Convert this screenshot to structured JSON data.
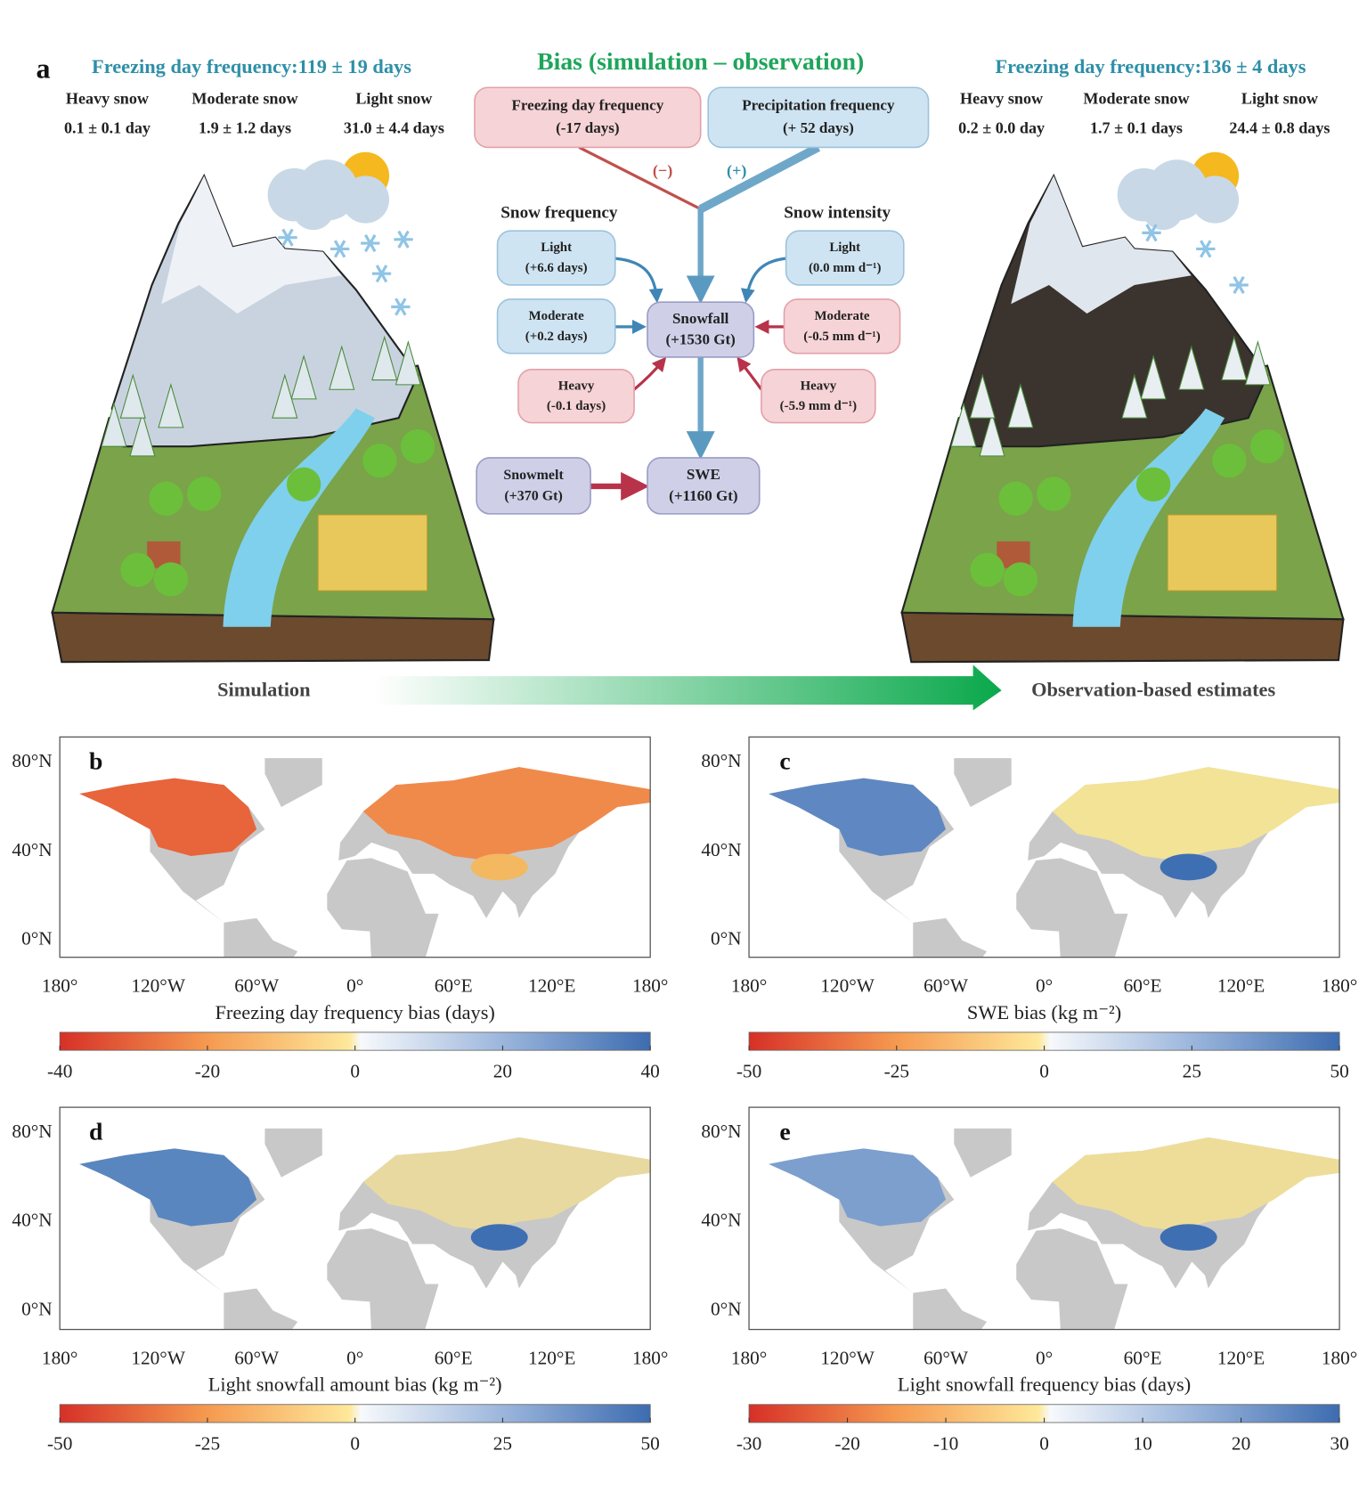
{
  "panel_a": {
    "label": "a",
    "title": "Bias (simulation – observation)",
    "simulation": {
      "title": "Freezing day frequency:119 ± 19 days",
      "items": [
        {
          "name": "Heavy snow",
          "value": "0.1 ± 0.1 day"
        },
        {
          "name": "Moderate snow",
          "value": "1.9 ± 1.2 days"
        },
        {
          "name": "Light snow",
          "value": "31.0 ± 4.4 days"
        }
      ],
      "caption": "Simulation"
    },
    "observation": {
      "title": "Freezing day frequency:136 ± 4 days",
      "items": [
        {
          "name": "Heavy snow",
          "value": "0.2 ± 0.0 day"
        },
        {
          "name": "Moderate snow",
          "value": "1.7 ± 0.1 days"
        },
        {
          "name": "Light snow",
          "value": "24.4 ± 0.8 days"
        }
      ],
      "caption": "Observation-based estimates"
    },
    "group_labels": [
      "Snow frequency",
      "Snow intensity"
    ],
    "edge_labels": [
      "(−)",
      "(+)"
    ],
    "nodes": [
      {
        "label": "Freezing day frequency",
        "detail": "(-17 days)"
      },
      {
        "label": "Precipitation frequency",
        "detail": "(+ 52 days)"
      },
      {
        "label": "Light",
        "detail": "(+6.6 days)"
      },
      {
        "label": "Moderate",
        "detail": "(+0.2 days)"
      },
      {
        "label": "Heavy",
        "detail": "(-0.1 days)"
      },
      {
        "label": "Snowfall",
        "detail": "(+1530 Gt)"
      },
      {
        "label": "Light",
        "detail": "(0.0 mm d⁻¹)"
      },
      {
        "label": "Moderate",
        "detail": "(-0.5 mm d⁻¹)"
      },
      {
        "label": "Heavy",
        "detail": "(-5.9 mm d⁻¹)"
      },
      {
        "label": "Snowmelt",
        "detail": "(+370 Gt)"
      },
      {
        "label": "SWE",
        "detail": "(+1160 Gt)"
      }
    ]
  },
  "lat_labels": [
    "80°N",
    "40°N",
    "0°N"
  ],
  "lon_labels": [
    "180°",
    "120°W",
    "60°W",
    "0°",
    "60°E",
    "120°E",
    "180°"
  ],
  "maps": [
    {
      "label": "b",
      "colorbar": {
        "label": "Freezing day frequency bias (days)",
        "lim": [
          -40,
          40
        ],
        "ticks": [
          -40,
          -20,
          0,
          20,
          40
        ]
      }
    },
    {
      "label": "c",
      "colorbar": {
        "label": "SWE bias (kg m⁻²)",
        "lim": [
          -50,
          50
        ],
        "ticks": [
          -50,
          -25,
          0,
          25,
          50
        ]
      }
    },
    {
      "label": "d",
      "colorbar": {
        "label": "Light snowfall amount bias (kg m⁻²)",
        "lim": [
          -50,
          50
        ],
        "ticks": [
          -50,
          -25,
          0,
          25,
          50
        ]
      }
    },
    {
      "label": "e",
      "colorbar": {
        "label": "Light snowfall frequency bias (days)",
        "lim": [
          -30,
          30
        ],
        "ticks": [
          -30,
          -20,
          -10,
          0,
          10,
          20,
          30
        ]
      }
    }
  ]
}
